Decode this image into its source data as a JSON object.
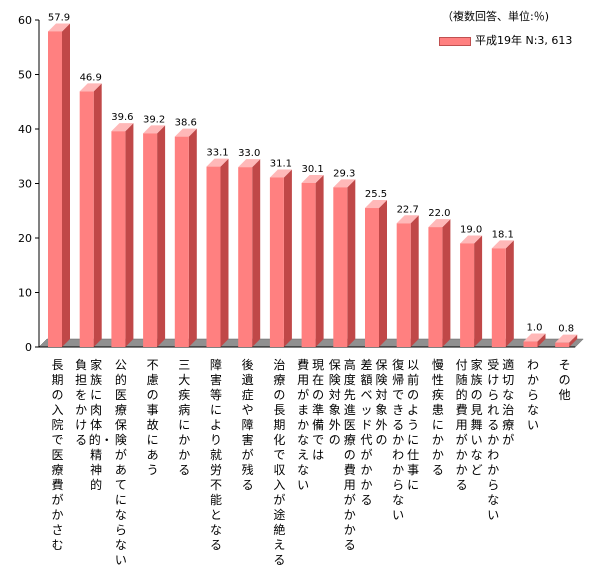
{
  "chart_data": {
    "type": "bar",
    "note": "（複数回答、単位:％)",
    "series": [
      {
        "name": "平成19年  N:3, 613"
      }
    ],
    "categories": [
      {
        "label": "長期の入院で医療費がかさむ",
        "value": 57.9,
        "value_label": "57.9"
      },
      {
        "label": "負担をかける",
        "label_col2": "家族に肉体的・精神的",
        "value": 46.9,
        "value_label": "46.9"
      },
      {
        "label": "公的医療保険があてにならない",
        "value": 39.6,
        "value_label": "39.6"
      },
      {
        "label": "不慮の事故にあう",
        "value": 39.2,
        "value_label": "39.2"
      },
      {
        "label": "三大疾病にかかる",
        "value": 38.6,
        "value_label": "38.6"
      },
      {
        "label": "障害等により就労不能となる",
        "value": 33.1,
        "value_label": "33.1"
      },
      {
        "label": "後遺症や障害が残る",
        "value": 33.0,
        "value_label": "33.0"
      },
      {
        "label": "治療の長期化で収入が途絶える",
        "value": 31.1,
        "value_label": "31.1"
      },
      {
        "label": "費用がまかなえない",
        "label_col2": "現在の準備では",
        "value": 30.1,
        "value_label": "30.1"
      },
      {
        "label": "保険対象外の",
        "label_col2": "高度先進医療の費用がかかる",
        "value": 29.3,
        "value_label": "29.3"
      },
      {
        "label": "差額ベッド代がかかる",
        "label_col2": "保険対象外の",
        "value": 25.5,
        "value_label": "25.5"
      },
      {
        "label": "復帰できるかわからない",
        "label_col2": "以前のように仕事に",
        "value": 22.7,
        "value_label": "22.7"
      },
      {
        "label": "慢性疾患にかかる",
        "value": 22.0,
        "value_label": "22.0"
      },
      {
        "label": "付随的費用がかかる",
        "label_col2": "家族の見舞いなど",
        "value": 19.0,
        "value_label": "19.0"
      },
      {
        "label": "受けられるかわからない",
        "label_col2": "適切な治療が",
        "value": 18.1,
        "value_label": "18.1"
      },
      {
        "label": "わからない",
        "value": 1.0,
        "value_label": "1.0"
      },
      {
        "label": "その他",
        "value": 0.8,
        "value_label": "0.8"
      }
    ],
    "yticks": [
      "0",
      "10",
      "20",
      "30",
      "40",
      "50",
      "60"
    ],
    "ylim": [
      0,
      60
    ],
    "grid": false,
    "colors": {
      "bar_front": "#ff8080",
      "bar_side": "#c04848",
      "bar_top": "#ffb8b8",
      "floor": "#909090"
    }
  }
}
